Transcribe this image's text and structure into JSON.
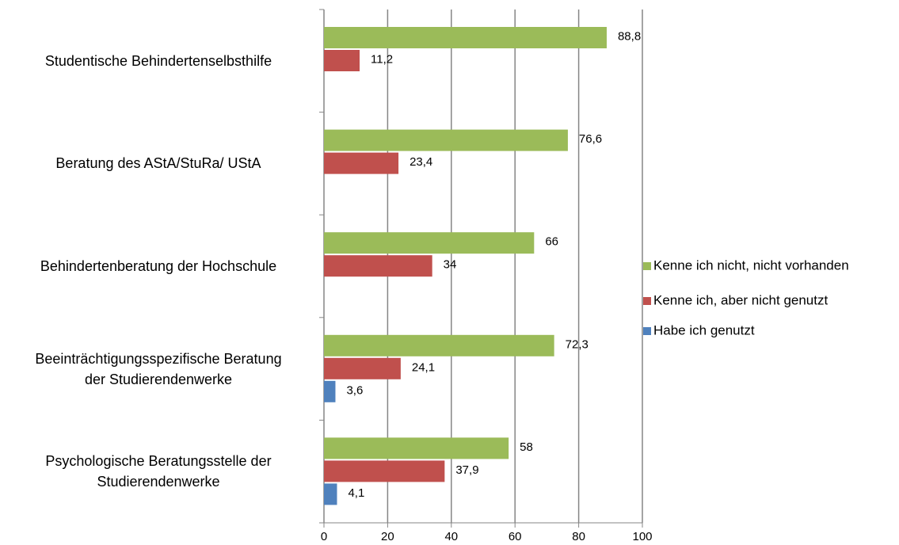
{
  "chart_data": {
    "type": "hbar",
    "categories": [
      "Studentische Behindertenselbsthilfe",
      "Beratung des AStA/StuRa/ UStA",
      "Behindertenberatung der Hochschule",
      "Beeinträchtigungsspezifische Beratung\nder Studierendenwerke",
      "Psychologische Beratungsstelle der\nStudierendenwerke"
    ],
    "series": [
      {
        "name": "Kenne ich nicht, nicht vorhanden",
        "color": "#9bbb59",
        "values": [
          88.8,
          76.6,
          66,
          72.3,
          58
        ],
        "value_labels": [
          "88,8",
          "76,6",
          "66",
          "72,3",
          "58"
        ]
      },
      {
        "name": "Kenne ich, aber nicht genutzt",
        "color": "#c0504d",
        "values": [
          11.2,
          23.4,
          34,
          24.1,
          37.9
        ],
        "value_labels": [
          "11,2",
          "23,4",
          "34",
          "24,1",
          "37,9"
        ]
      },
      {
        "name": "Habe ich genutzt",
        "color": "#4f81bd",
        "values": [
          null,
          null,
          null,
          3.6,
          4.1
        ],
        "value_labels": [
          null,
          null,
          null,
          "3,6",
          "4,1"
        ]
      }
    ],
    "xlim": [
      0,
      100
    ],
    "xticks": [
      0,
      20,
      40,
      60,
      80,
      100
    ],
    "grid": true,
    "legend": "right"
  }
}
